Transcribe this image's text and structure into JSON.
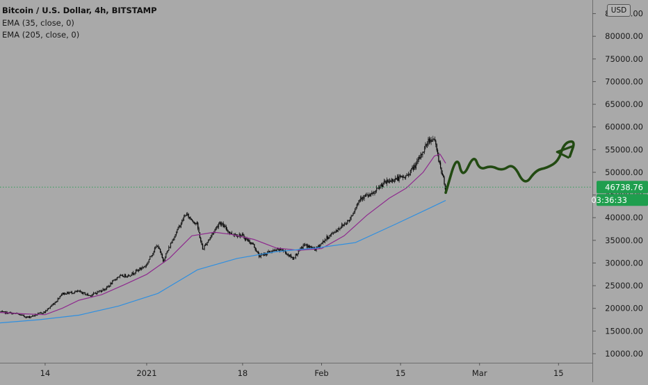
{
  "legend": {
    "title": "Bitcoin / U.S. Dollar, 4h, BITSTAMP",
    "ema1": "EMA (35, close, 0)",
    "ema2": "EMA (205, close, 0)"
  },
  "currency_button": "USD",
  "current_price": "46738.76",
  "countdown": "03:36:33",
  "colors": {
    "background": "#a9a9a9",
    "candles": "#000000",
    "ema_35": "#8e2a8e",
    "ema_205": "#2f8fe0",
    "drawing": "#224a12",
    "price_label": "#1f9e4e"
  },
  "chart_data": {
    "type": "line",
    "title": "Bitcoin / U.S. Dollar, 4h, BITSTAMP",
    "ylim": [
      8000,
      88000
    ],
    "y_ticks": [
      "10000.00",
      "15000.00",
      "20000.00",
      "25000.00",
      "30000.00",
      "35000.00",
      "40000.00",
      "45000.00",
      "50000.00",
      "55000.00",
      "60000.00",
      "65000.00",
      "70000.00",
      "75000.00",
      "80000.00",
      "85000.00"
    ],
    "x_ticks": [
      "14",
      "2021",
      "18",
      "Feb",
      "15",
      "Mar",
      "15"
    ],
    "x_tick_dates": [
      "2020-12-14",
      "2021-01-01",
      "2021-01-18",
      "2021-02-01",
      "2021-02-15",
      "2021-03-01",
      "2021-03-15"
    ],
    "xlim": [
      "2020-12-06",
      "2021-03-21"
    ],
    "price_anchors": [
      [
        "2020-12-06",
        19200
      ],
      [
        "2020-12-09",
        18800
      ],
      [
        "2020-12-11",
        18000
      ],
      [
        "2020-12-14",
        19200
      ],
      [
        "2020-12-16",
        21500
      ],
      [
        "2020-12-17",
        23200
      ],
      [
        "2020-12-20",
        23700
      ],
      [
        "2020-12-22",
        22800
      ],
      [
        "2020-12-25",
        24500
      ],
      [
        "2020-12-27",
        27000
      ],
      [
        "2020-12-29",
        27300
      ],
      [
        "2021-01-01",
        29500
      ],
      [
        "2021-01-02",
        32000
      ],
      [
        "2021-01-03",
        34000
      ],
      [
        "2021-01-04",
        30500
      ],
      [
        "2021-01-06",
        36000
      ],
      [
        "2021-01-08",
        40800
      ],
      [
        "2021-01-10",
        38500
      ],
      [
        "2021-01-11",
        33000
      ],
      [
        "2021-01-12",
        35000
      ],
      [
        "2021-01-14",
        39000
      ],
      [
        "2021-01-16",
        36500
      ],
      [
        "2021-01-18",
        36000
      ],
      [
        "2021-01-20",
        34000
      ],
      [
        "2021-01-21",
        31500
      ],
      [
        "2021-01-23",
        32500
      ],
      [
        "2021-01-25",
        33000
      ],
      [
        "2021-01-27",
        31000
      ],
      [
        "2021-01-29",
        34000
      ],
      [
        "2021-01-31",
        33000
      ],
      [
        "2021-02-02",
        35500
      ],
      [
        "2021-02-04",
        37500
      ],
      [
        "2021-02-06",
        39500
      ],
      [
        "2021-02-08",
        44500
      ],
      [
        "2021-02-10",
        45000
      ],
      [
        "2021-02-12",
        47500
      ],
      [
        "2021-02-14",
        48500
      ],
      [
        "2021-02-16",
        49000
      ],
      [
        "2021-02-18",
        52000
      ],
      [
        "2021-02-20",
        57000
      ],
      [
        "2021-02-21",
        57500
      ],
      [
        "2021-02-22",
        52000
      ],
      [
        "2021-02-23",
        46738.76
      ]
    ],
    "series": [
      {
        "name": "EMA (35, close, 0)",
        "points": [
          [
            "2020-12-06",
            19100
          ],
          [
            "2020-12-10",
            18800
          ],
          [
            "2020-12-14",
            18600
          ],
          [
            "2020-12-17",
            20000
          ],
          [
            "2020-12-20",
            21800
          ],
          [
            "2020-12-24",
            23000
          ],
          [
            "2020-12-28",
            25200
          ],
          [
            "2021-01-01",
            27500
          ],
          [
            "2021-01-05",
            31000
          ],
          [
            "2021-01-09",
            36000
          ],
          [
            "2021-01-13",
            36800
          ],
          [
            "2021-01-16",
            36300
          ],
          [
            "2021-01-20",
            35200
          ],
          [
            "2021-01-24",
            33300
          ],
          [
            "2021-01-28",
            32800
          ],
          [
            "2021-02-01",
            33200
          ],
          [
            "2021-02-05",
            36000
          ],
          [
            "2021-02-09",
            40500
          ],
          [
            "2021-02-13",
            44300
          ],
          [
            "2021-02-16",
            46500
          ],
          [
            "2021-02-19",
            50000
          ],
          [
            "2021-02-21",
            53600
          ],
          [
            "2021-02-22",
            54000
          ],
          [
            "2021-02-23",
            52000
          ]
        ]
      },
      {
        "name": "EMA (205, close, 0)",
        "points": [
          [
            "2020-12-06",
            16800
          ],
          [
            "2020-12-13",
            17500
          ],
          [
            "2020-12-20",
            18500
          ],
          [
            "2020-12-27",
            20500
          ],
          [
            "2021-01-03",
            23300
          ],
          [
            "2021-01-10",
            28500
          ],
          [
            "2021-01-17",
            31000
          ],
          [
            "2021-01-24",
            32500
          ],
          [
            "2021-01-31",
            33300
          ],
          [
            "2021-02-07",
            34500
          ],
          [
            "2021-02-14",
            38500
          ],
          [
            "2021-02-20",
            42000
          ],
          [
            "2021-02-23",
            43800
          ]
        ]
      }
    ],
    "annotation_path": [
      [
        "2021-02-23",
        45500
      ],
      [
        "2021-02-25",
        54000
      ],
      [
        "2021-02-26",
        48500
      ],
      [
        "2021-02-28",
        54000
      ],
      [
        "2021-03-01",
        50500
      ],
      [
        "2021-03-03",
        51500
      ],
      [
        "2021-03-05",
        50300
      ],
      [
        "2021-03-07",
        52000
      ],
      [
        "2021-03-09",
        47000
      ],
      [
        "2021-03-11",
        50500
      ],
      [
        "2021-03-13",
        51000
      ],
      [
        "2021-03-15",
        52500
      ],
      [
        "2021-03-16",
        56500
      ],
      [
        "2021-03-18",
        57000
      ],
      [
        "2021-03-17",
        53500
      ]
    ],
    "grid": false,
    "legend": "top-left"
  }
}
